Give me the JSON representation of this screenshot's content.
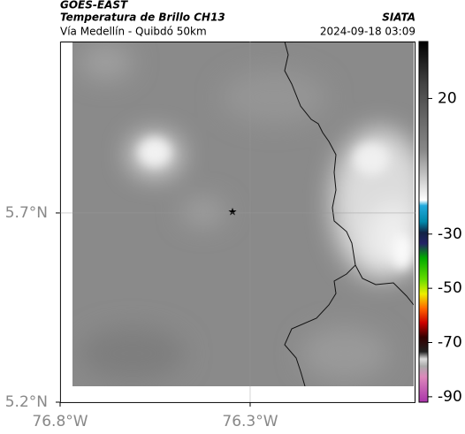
{
  "header": {
    "title": "GOES-EAST",
    "subtitle": "Temperatura de Brillo CH13",
    "region": "Vía Medellín - Quibdó 50km",
    "source": "SIATA",
    "datetime": "2024-09-18 03:09"
  },
  "map": {
    "latlim": [
      5.2,
      6.153
    ],
    "lonlim": [
      -76.8,
      -75.865
    ],
    "lat_ticks": [
      {
        "value": 5.7,
        "label": "5.7°N"
      },
      {
        "value": 5.2,
        "label": "5.2°N"
      }
    ],
    "lon_ticks": [
      {
        "value": -76.8,
        "label": "76.8°W"
      },
      {
        "value": -76.3,
        "label": "76.3°W"
      }
    ]
  },
  "colorbar": {
    "lim": [
      -92,
      41
    ],
    "ticks": [
      20,
      -30,
      -50,
      -70,
      -90
    ]
  }
}
